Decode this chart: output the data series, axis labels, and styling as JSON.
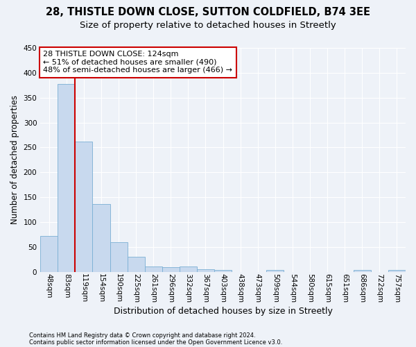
{
  "title1": "28, THISTLE DOWN CLOSE, SUTTON COLDFIELD, B74 3EE",
  "title2": "Size of property relative to detached houses in Streetly",
  "xlabel": "Distribution of detached houses by size in Streetly",
  "ylabel": "Number of detached properties",
  "footer1": "Contains HM Land Registry data © Crown copyright and database right 2024.",
  "footer2": "Contains public sector information licensed under the Open Government Licence v3.0.",
  "bin_labels": [
    "48sqm",
    "83sqm",
    "119sqm",
    "154sqm",
    "190sqm",
    "225sqm",
    "261sqm",
    "296sqm",
    "332sqm",
    "367sqm",
    "403sqm",
    "438sqm",
    "473sqm",
    "509sqm",
    "544sqm",
    "580sqm",
    "615sqm",
    "651sqm",
    "686sqm",
    "722sqm",
    "757sqm"
  ],
  "bar_values": [
    72,
    378,
    261,
    136,
    60,
    30,
    10,
    9,
    10,
    5,
    4,
    0,
    0,
    4,
    0,
    0,
    0,
    0,
    4,
    0,
    4
  ],
  "bar_color": "#c8d9ee",
  "bar_edge_color": "#7aafd4",
  "property_line_color": "#cc0000",
  "annotation_text": "28 THISTLE DOWN CLOSE: 124sqm\n← 51% of detached houses are smaller (490)\n48% of semi-detached houses are larger (466) →",
  "annotation_box_color": "white",
  "annotation_box_edge_color": "#cc0000",
  "ylim": [
    0,
    450
  ],
  "yticks": [
    0,
    50,
    100,
    150,
    200,
    250,
    300,
    350,
    400,
    450
  ],
  "background_color": "#eef2f8",
  "plot_background_color": "#eef2f8",
  "grid_color": "#ffffff",
  "title1_fontsize": 10.5,
  "title2_fontsize": 9.5,
  "xlabel_fontsize": 9,
  "ylabel_fontsize": 8.5,
  "tick_fontsize": 7.5,
  "annotation_fontsize": 8,
  "footer_fontsize": 6
}
